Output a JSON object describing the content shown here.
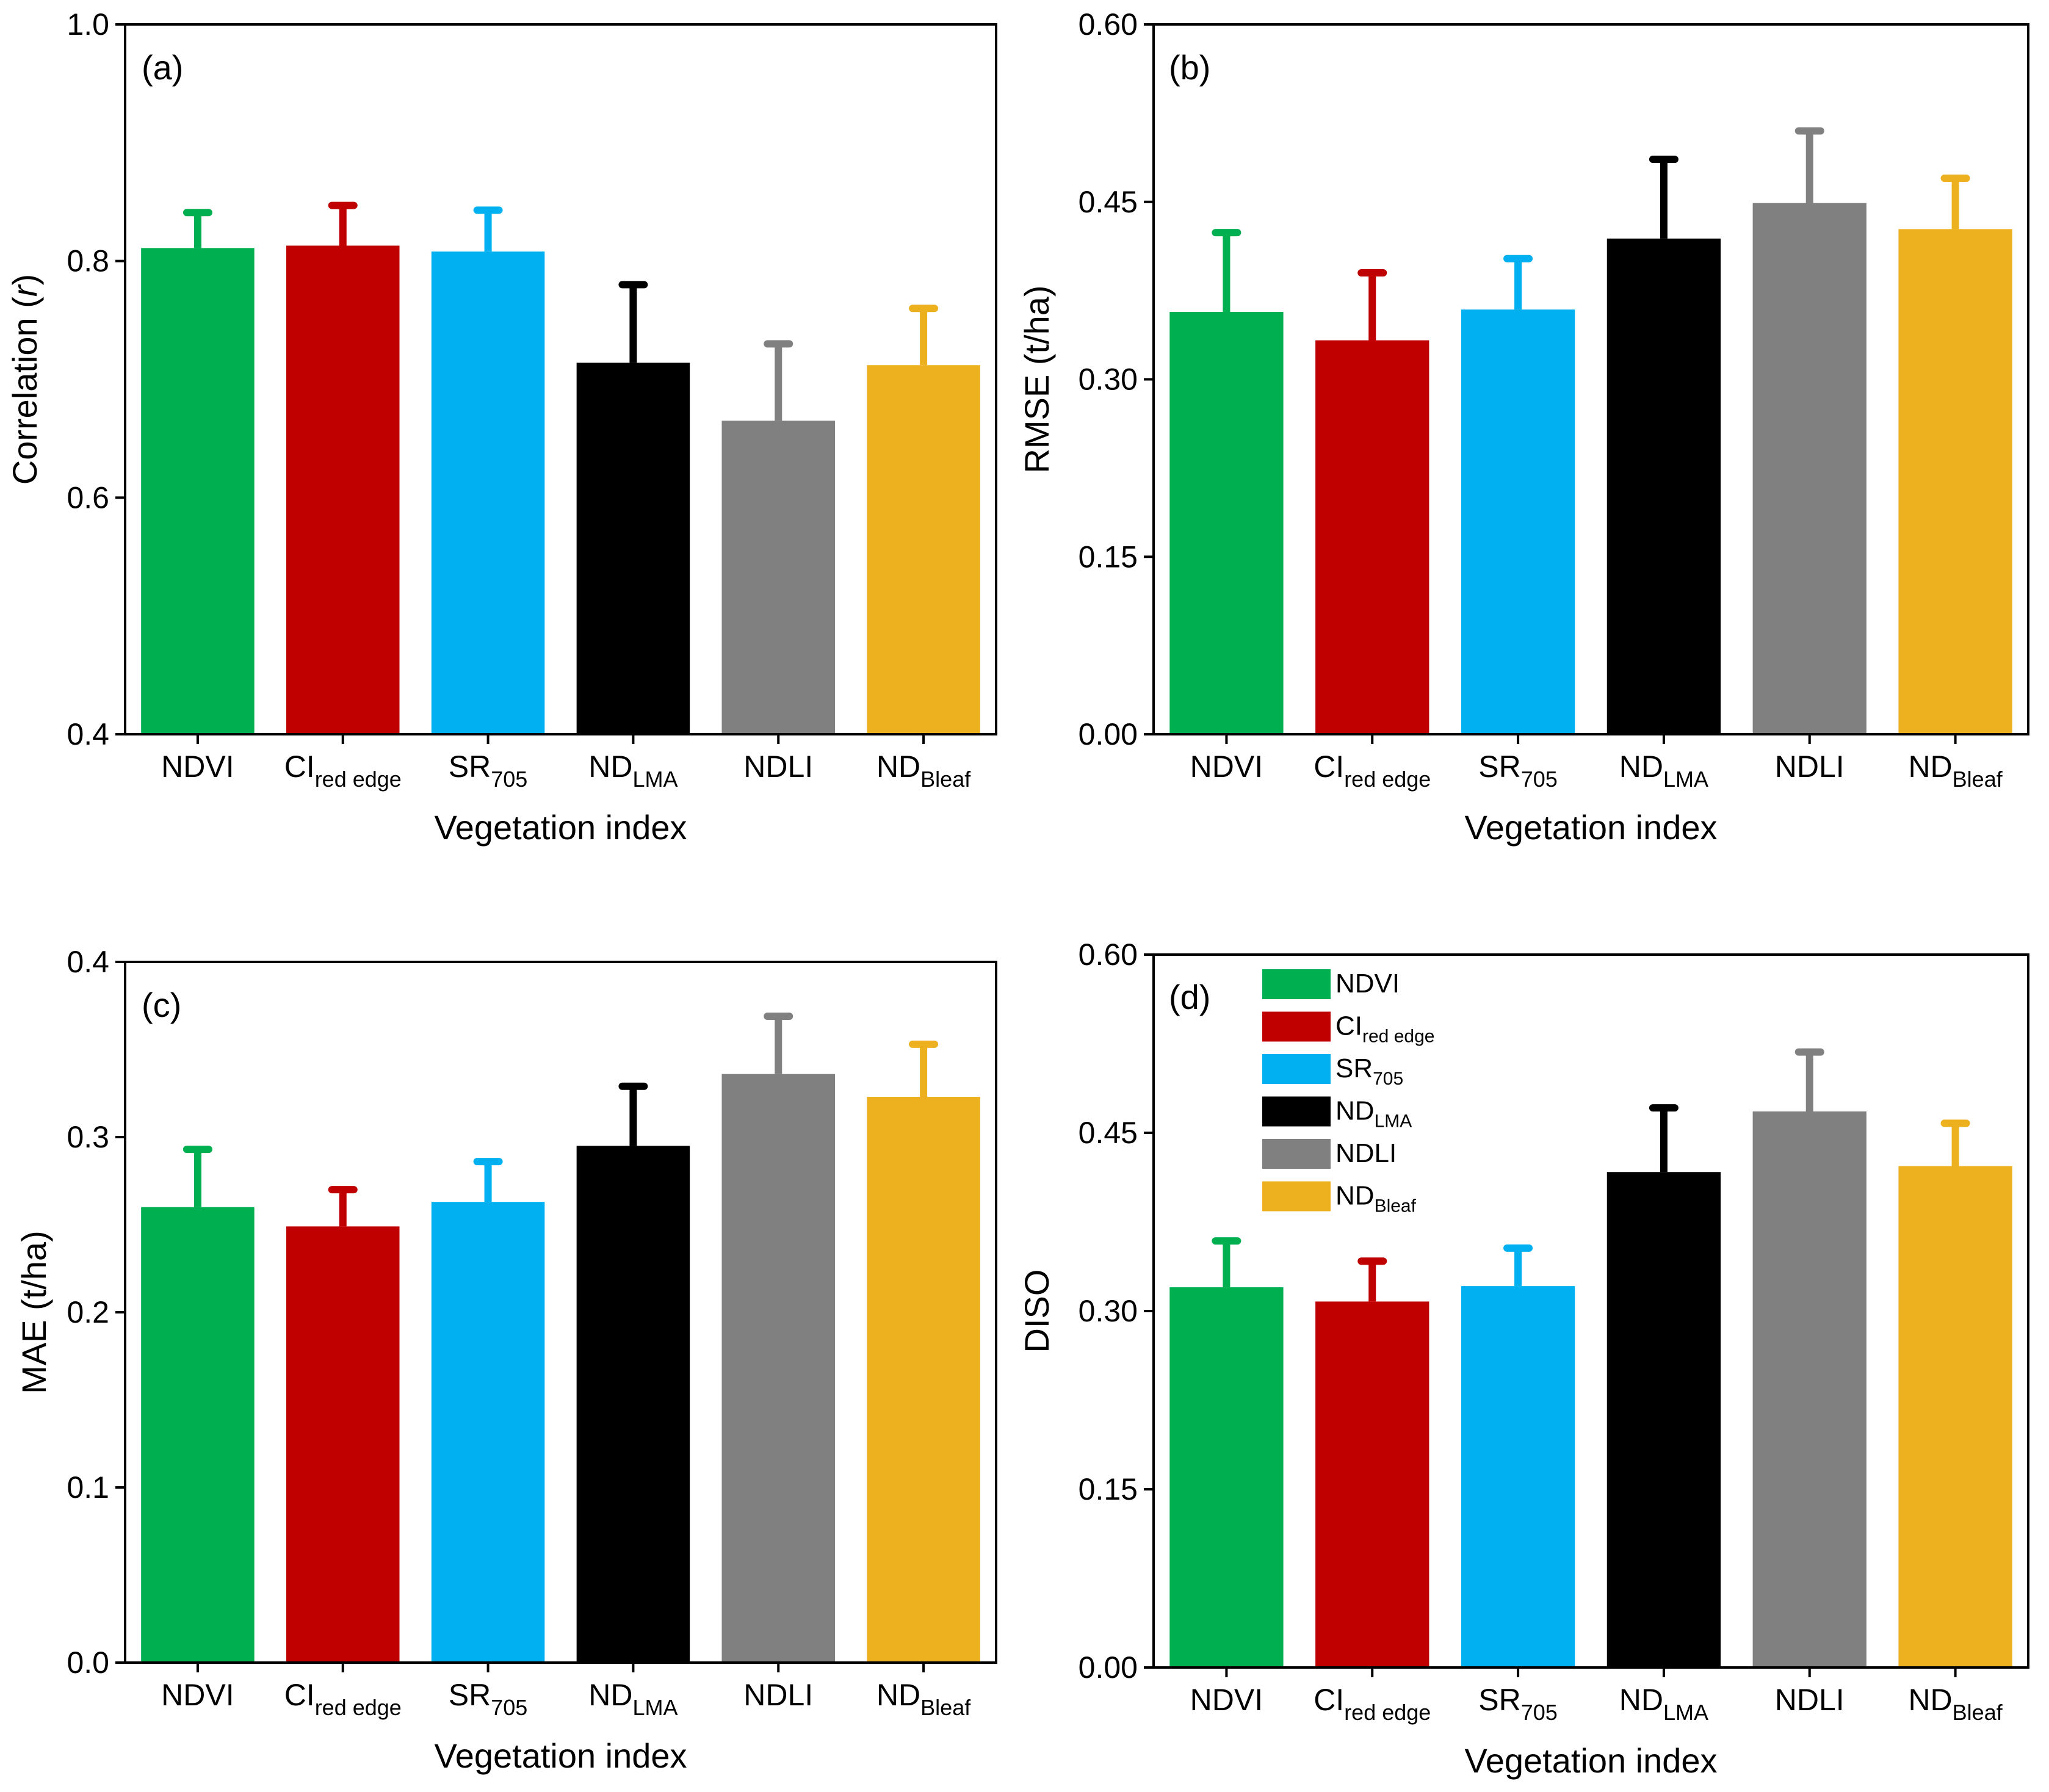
{
  "figure": {
    "xlabel": "Vegetation index",
    "legend": [
      "NDVI",
      "CIred edge",
      "SR705",
      "NDLMA",
      "NDLI",
      "NDBleaf"
    ]
  },
  "categories": [
    {
      "main": "NDVI",
      "sub": ""
    },
    {
      "main": "CI",
      "sub": "red edge"
    },
    {
      "main": "SR",
      "sub": "705"
    },
    {
      "main": "ND",
      "sub": "LMA"
    },
    {
      "main": "NDLI",
      "sub": ""
    },
    {
      "main": "ND",
      "sub": "Bleaf"
    }
  ],
  "colors": [
    "#00b050",
    "#c00000",
    "#00b0f0",
    "#000000",
    "#808080",
    "#edb120"
  ],
  "chart_data": [
    {
      "type": "bar",
      "panel": "(a)",
      "title": "",
      "ylabel": "Correlation (r)",
      "ylabel_parts": [
        "Correlation (",
        "r",
        ")"
      ],
      "xlabel": "Vegetation index",
      "categories": [
        "NDVI",
        "CIred edge",
        "SR705",
        "NDLMA",
        "NDLI",
        "NDBleaf"
      ],
      "values": [
        0.811,
        0.813,
        0.808,
        0.714,
        0.665,
        0.712
      ],
      "errors": [
        0.03,
        0.034,
        0.035,
        0.066,
        0.065,
        0.048
      ],
      "ylim": [
        0.4,
        1.0
      ],
      "yticks": [
        0.4,
        0.6,
        0.8,
        1.0
      ],
      "ytick_labels": [
        "0.4",
        "0.6",
        "0.8",
        "1.0"
      ],
      "legend": false
    },
    {
      "type": "bar",
      "panel": "(b)",
      "title": "",
      "ylabel": "RMSE (t/ha)",
      "ylabel_parts": [
        "RMSE (t/ha)"
      ],
      "xlabel": "Vegetation index",
      "categories": [
        "NDVI",
        "CIred edge",
        "SR705",
        "NDLMA",
        "NDLI",
        "NDBleaf"
      ],
      "values": [
        0.357,
        0.333,
        0.359,
        0.419,
        0.449,
        0.427
      ],
      "errors": [
        0.067,
        0.057,
        0.043,
        0.067,
        0.061,
        0.043
      ],
      "ylim": [
        0,
        0.6
      ],
      "yticks": [
        0,
        0.15,
        0.3,
        0.45,
        0.6
      ],
      "ytick_labels": [
        "0.00",
        "0.15",
        "0.30",
        "0.45",
        "0.60"
      ],
      "legend": false
    },
    {
      "type": "bar",
      "panel": "(c)",
      "title": "",
      "ylabel": "MAE (t/ha)",
      "ylabel_parts": [
        "MAE (t/ha)"
      ],
      "xlabel": "Vegetation index",
      "categories": [
        "NDVI",
        "CIred edge",
        "SR705",
        "NDLMA",
        "NDLI",
        "NDBleaf"
      ],
      "values": [
        0.26,
        0.249,
        0.263,
        0.295,
        0.336,
        0.323
      ],
      "errors": [
        0.033,
        0.021,
        0.023,
        0.034,
        0.033,
        0.03
      ],
      "ylim": [
        0,
        0.4
      ],
      "yticks": [
        0,
        0.1,
        0.2,
        0.3,
        0.4
      ],
      "ytick_labels": [
        "0.0",
        "0.1",
        "0.2",
        "0.3",
        "0.4"
      ],
      "legend": false
    },
    {
      "type": "bar",
      "panel": "(d)",
      "title": "",
      "ylabel": "DISO",
      "ylabel_parts": [
        "DISO"
      ],
      "xlabel": "Vegetation index",
      "categories": [
        "NDVI",
        "CIred edge",
        "SR705",
        "NDLMA",
        "NDLI",
        "NDBleaf"
      ],
      "values": [
        0.32,
        0.308,
        0.321,
        0.417,
        0.468,
        0.422
      ],
      "errors": [
        0.039,
        0.034,
        0.032,
        0.054,
        0.05,
        0.036
      ],
      "ylim": [
        0,
        0.6
      ],
      "yticks": [
        0,
        0.15,
        0.3,
        0.45,
        0.6
      ],
      "ytick_labels": [
        "0.00",
        "0.15",
        "0.30",
        "0.45",
        "0.60"
      ],
      "legend": "top-left"
    }
  ]
}
